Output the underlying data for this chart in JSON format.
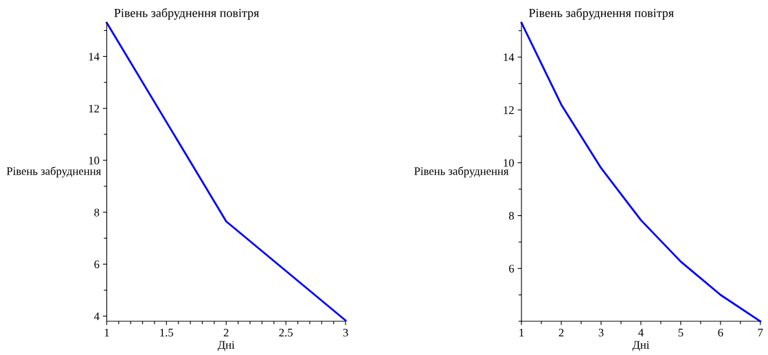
{
  "chart_data": [
    {
      "type": "line",
      "title": "Рівень забруднення повітря",
      "xlabel": "Дні",
      "ylabel": "Рівень забруднення",
      "x": [
        1,
        2,
        3
      ],
      "series": [
        {
          "color": "#0000ff",
          "values": [
            15.3,
            7.65,
            3.83
          ]
        }
      ],
      "xlim": [
        1,
        3
      ],
      "xticks": [
        1,
        1.5,
        2,
        2.5,
        3
      ],
      "ylim": [
        3.8,
        15.3
      ],
      "yticks": [
        4,
        6,
        8,
        10,
        12,
        14
      ],
      "grid": false
    },
    {
      "type": "line",
      "title": "Рівень забруднення повітря",
      "xlabel": "Дні",
      "ylabel": "Рівень забруднення",
      "x": [
        1,
        2,
        3,
        4,
        5,
        6,
        7
      ],
      "series": [
        {
          "color": "#0000ff",
          "values": [
            15.3,
            12.2,
            9.8,
            7.83,
            6.26,
            5.0,
            4.0
          ]
        }
      ],
      "xlim": [
        1,
        7
      ],
      "xticks": [
        1,
        2,
        3,
        4,
        5,
        6,
        7
      ],
      "ylim": [
        4.0,
        15.3
      ],
      "yticks": [
        6,
        8,
        10,
        12,
        14
      ],
      "grid": false
    }
  ]
}
